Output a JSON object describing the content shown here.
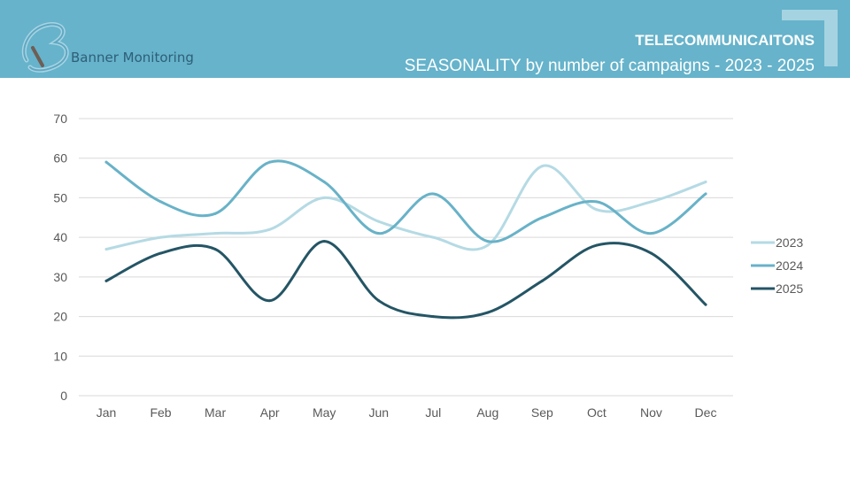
{
  "header": {
    "brand": "Banner Monitoring",
    "title": "TELECOMMUNICAITONS",
    "subtitle": "SEASONALITY by number of campaigns - 2023 - 2025",
    "logo_icon": "b-letter-logo-icon",
    "colors": {
      "bar": "#66b3cb",
      "corner": "#a6d3e1",
      "brand_text": "#2e5f77"
    }
  },
  "chart_data": {
    "type": "line",
    "title": "SEASONALITY by number of campaigns - 2023 - 2025",
    "xlabel": "",
    "ylabel": "",
    "categories": [
      "Jan",
      "Feb",
      "Mar",
      "Apr",
      "May",
      "Jun",
      "Jul",
      "Aug",
      "Sep",
      "Oct",
      "Nov",
      "Dec"
    ],
    "ylim": [
      0,
      70
    ],
    "yticks": [
      0,
      10,
      20,
      30,
      40,
      50,
      60,
      70
    ],
    "grid": true,
    "smooth": true,
    "legend_position": "right",
    "series": [
      {
        "name": "2023",
        "color": "#b5dae4",
        "values": [
          37,
          40,
          41,
          42,
          50,
          44,
          40,
          38,
          58,
          47,
          49,
          54
        ]
      },
      {
        "name": "2024",
        "color": "#68b2c8",
        "values": [
          59,
          49,
          46,
          59,
          54,
          41,
          51,
          39,
          45,
          49,
          41,
          51
        ]
      },
      {
        "name": "2025",
        "color": "#245565",
        "values": [
          29,
          36,
          37,
          24,
          39,
          24,
          20,
          21,
          29,
          38,
          36,
          23
        ]
      }
    ]
  }
}
